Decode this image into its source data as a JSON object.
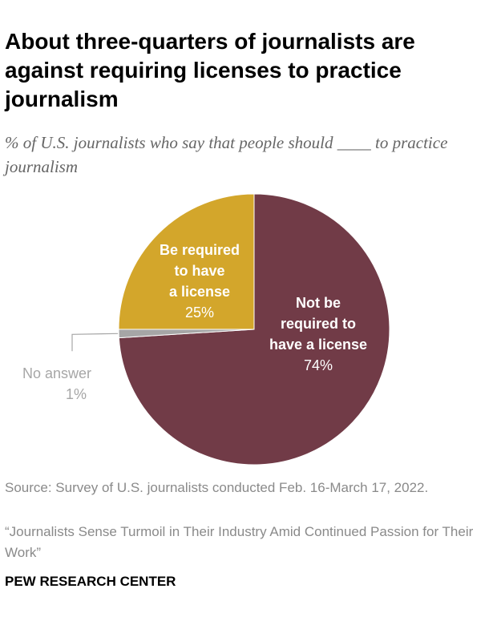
{
  "title": "About three-quarters of journalists are against requiring licenses to practice journalism",
  "subtitle": "% of U.S. journalists who say that people should ____ to practice journalism",
  "chart_data": {
    "type": "pie",
    "slices": [
      {
        "label_lines": [
          "Not be",
          "required to",
          "have a license"
        ],
        "value": 74,
        "value_label": "74%",
        "color": "#713b47",
        "text_color": "#ffffff"
      },
      {
        "label_lines": [
          "No answer"
        ],
        "value": 1,
        "value_label": "1%",
        "color": "#a6a6a6",
        "text_color": "#a6a6a6"
      },
      {
        "label_lines": [
          "Be required",
          "to have",
          "a license"
        ],
        "value": 25,
        "value_label": "25%",
        "color": "#d3a62b",
        "text_color": "#ffffff"
      }
    ]
  },
  "source": "Source: Survey of U.S. journalists conducted Feb. 16-March 17, 2022.",
  "report": "“Journalists Sense Turmoil in Their Industry Amid Continued Passion for Their Work”",
  "brand": "PEW RESEARCH CENTER"
}
